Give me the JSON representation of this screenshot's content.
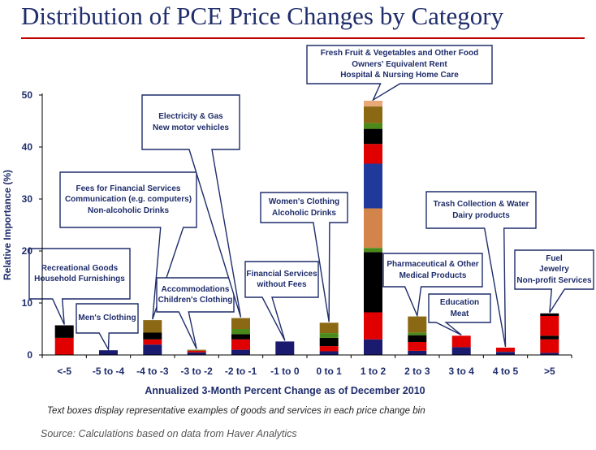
{
  "title": "Distribution of PCE Price Changes  by Category",
  "note": "Text boxes display representative examples of goods and services in each price change bin",
  "source": "Source:  Calculations based on data from Haver Analytics",
  "colors": {
    "title": "#1f2d6b",
    "rule": "#c00000",
    "callout_text": "#1f2d6b",
    "axis": "#000000",
    "callout_stroke": "#1f2d6b"
  },
  "chart_data": {
    "type": "bar",
    "stacked": true,
    "title": "Distribution of PCE Price Changes  by Category",
    "xlabel": "Annualized 3-Month Percent Change as of December 2010",
    "ylabel": "Relative Importance (%)",
    "ylim": [
      0,
      50
    ],
    "yticks": [
      0,
      10,
      20,
      30,
      40,
      50
    ],
    "grid": false,
    "legend": "none",
    "categories": [
      "<-5",
      "-5 to -4",
      "-4 to -3",
      "-3 to -2",
      "-2 to -1",
      "-1 to 0",
      "0 to 1",
      "1 to 2",
      "2 to 3",
      "3 to 4",
      "4 to 5",
      ">5"
    ],
    "stacks": [
      [
        {
          "v": 3.3,
          "c": "#e00000"
        },
        {
          "v": 2.4,
          "c": "#000000"
        }
      ],
      [
        {
          "v": 0.9,
          "c": "#1a1a6e"
        }
      ],
      [
        {
          "v": 2.0,
          "c": "#1a1a6e"
        },
        {
          "v": 1.0,
          "c": "#e00000"
        },
        {
          "v": 1.3,
          "c": "#000000"
        },
        {
          "v": 2.4,
          "c": "#8b6914"
        }
      ],
      [
        {
          "v": 0.5,
          "c": "#1a1a6e"
        },
        {
          "v": 0.3,
          "c": "#e00000"
        },
        {
          "v": 0.2,
          "c": "#8b6914"
        }
      ],
      [
        {
          "v": 1.0,
          "c": "#1a1a6e"
        },
        {
          "v": 2.0,
          "c": "#e00000"
        },
        {
          "v": 1.0,
          "c": "#000000"
        },
        {
          "v": 1.0,
          "c": "#4a8a1a"
        },
        {
          "v": 2.1,
          "c": "#8b6914"
        }
      ],
      [
        {
          "v": 2.6,
          "c": "#1a1a6e"
        }
      ],
      [
        {
          "v": 0.7,
          "c": "#1a1a6e"
        },
        {
          "v": 1.0,
          "c": "#e00000"
        },
        {
          "v": 1.6,
          "c": "#000000"
        },
        {
          "v": 0.9,
          "c": "#4a8a1a"
        },
        {
          "v": 2.0,
          "c": "#8b6914"
        }
      ],
      [
        {
          "v": 3.0,
          "c": "#1a1a6e"
        },
        {
          "v": 5.2,
          "c": "#e00000"
        },
        {
          "v": 11.6,
          "c": "#000000"
        },
        {
          "v": 0.8,
          "c": "#4a8a1a"
        },
        {
          "v": 7.6,
          "c": "#d2844a"
        },
        {
          "v": 8.6,
          "c": "#1f3a9a"
        },
        {
          "v": 3.8,
          "c": "#e00000"
        },
        {
          "v": 2.9,
          "c": "#000000"
        },
        {
          "v": 1.1,
          "c": "#4a8a1a"
        },
        {
          "v": 3.2,
          "c": "#8b6914"
        },
        {
          "v": 1.1,
          "c": "#e8a878"
        }
      ],
      [
        {
          "v": 0.8,
          "c": "#1a1a6e"
        },
        {
          "v": 1.7,
          "c": "#e00000"
        },
        {
          "v": 1.3,
          "c": "#000000"
        },
        {
          "v": 0.5,
          "c": "#4a8a1a"
        },
        {
          "v": 3.1,
          "c": "#8b6914"
        }
      ],
      [
        {
          "v": 1.5,
          "c": "#1a1a6e"
        },
        {
          "v": 2.2,
          "c": "#e00000"
        }
      ],
      [
        {
          "v": 0.6,
          "c": "#1a1a6e"
        },
        {
          "v": 0.8,
          "c": "#e00000"
        }
      ],
      [
        {
          "v": 0.4,
          "c": "#1a1a6e"
        },
        {
          "v": 2.6,
          "c": "#e00000"
        },
        {
          "v": 0.7,
          "c": "#000000"
        },
        {
          "v": 3.8,
          "c": "#e00000"
        },
        {
          "v": 0.5,
          "c": "#000000"
        }
      ]
    ],
    "annotations": [
      {
        "name": "callout-lt-minus5",
        "lines": [
          "Recreational Goods",
          "Household Furnishings"
        ],
        "category": 0
      },
      {
        "name": "callout-minus5-minus4",
        "lines": [
          "Men's Clothing"
        ],
        "category": 1
      },
      {
        "name": "callout-minus4-minus3",
        "lines": [
          "Fees for Financial Services",
          "Communication (e.g. computers)",
          "Non-alcoholic Drinks"
        ],
        "category": 2
      },
      {
        "name": "callout-minus3-minus2",
        "lines": [
          "Accommodations",
          "Children's Clothing"
        ],
        "category": 3
      },
      {
        "name": "callout-minus2-minus1",
        "lines": [
          "Electricity & Gas",
          "New motor vehicles"
        ],
        "category": 4
      },
      {
        "name": "callout-minus1-0",
        "lines": [
          "Financial Services",
          "without Fees"
        ],
        "category": 5
      },
      {
        "name": "callout-0-1",
        "lines": [
          "Women's Clothing",
          "Alcoholic Drinks"
        ],
        "category": 6
      },
      {
        "name": "callout-1-2",
        "lines": [
          "Fresh Fruit & Vegetables and Other Food",
          "Owners' Equivalent Rent",
          "Hospital & Nursing Home Care"
        ],
        "category": 7
      },
      {
        "name": "callout-2-3",
        "lines": [
          "Pharmaceutical & Other",
          "Medical Products"
        ],
        "category": 8
      },
      {
        "name": "callout-3-4",
        "lines": [
          "Education",
          "Meat"
        ],
        "category": 9
      },
      {
        "name": "callout-4-5",
        "lines": [
          "Trash Collection & Water",
          "Dairy products"
        ],
        "category": 10
      },
      {
        "name": "callout-gt5",
        "lines": [
          "Fuel",
          "Jewelry",
          "Non-profit Services"
        ],
        "category": 11
      }
    ]
  }
}
